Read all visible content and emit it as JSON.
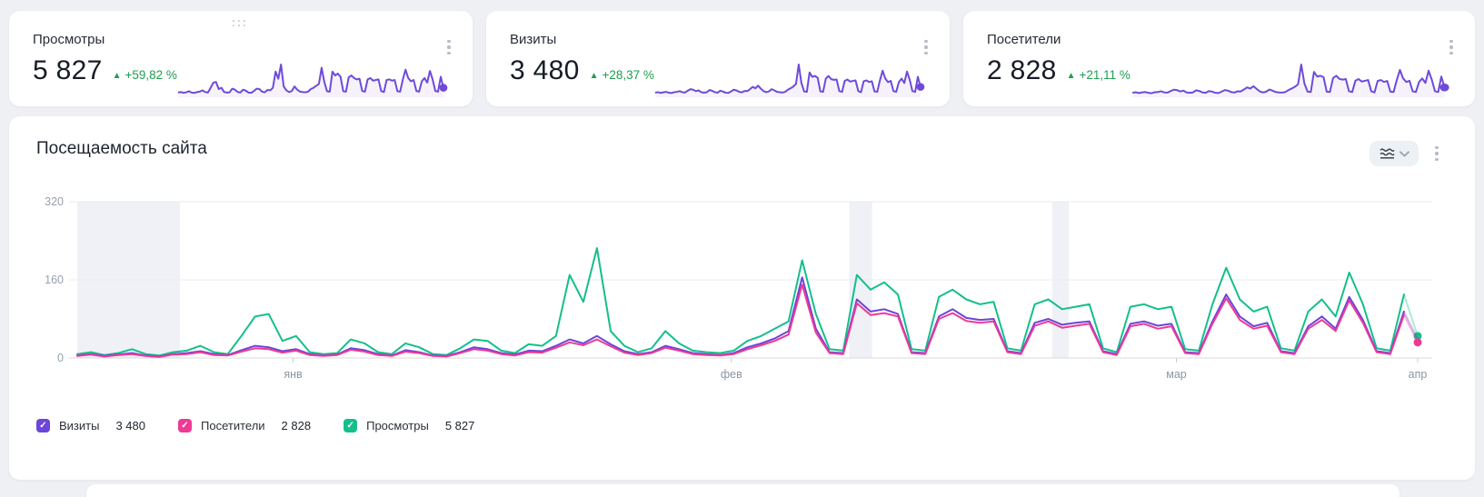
{
  "kpi_cards": [
    {
      "title": "Просмотры",
      "value": "5 827",
      "delta": "+59,82 %",
      "series_key": "views"
    },
    {
      "title": "Визиты",
      "value": "3 480",
      "delta": "+28,37 %",
      "series_key": "visits"
    },
    {
      "title": "Посетители",
      "value": "2 828",
      "delta": "+21,11 %",
      "series_key": "visitors"
    }
  ],
  "colors": {
    "delta_green": "#1f9e50",
    "spark_purple": "#6f4ad9",
    "grid": "#e9ebef",
    "axis": "#d8dbe1",
    "tick": "#c7ccd3",
    "axis_text": "#98a0ab",
    "band": "#eff1f6"
  },
  "main_card": {
    "title": "Посещаемость сайта",
    "chart_type_button": "line-chart-type",
    "menu_button": "more-options"
  },
  "chart_data": {
    "type": "line",
    "title": "Посещаемость сайта",
    "ylim": [
      0,
      320
    ],
    "yticks": [
      "0",
      "160",
      "320"
    ],
    "grid": "horizontal",
    "legend_position": "bottom",
    "xticks": [
      {
        "label": "янв",
        "f": 0.161
      },
      {
        "label": "фев",
        "f": 0.488
      },
      {
        "label": "мар",
        "f": 0.82
      },
      {
        "label": "апр",
        "f": 1.0
      }
    ],
    "bands": [
      {
        "f0": 0.0,
        "f1": 0.0766
      },
      {
        "f0": 0.576,
        "f1": 0.593
      },
      {
        "f0": 0.7274,
        "f1": 0.7397
      }
    ],
    "series": [
      {
        "key": "visits",
        "name": "Визиты",
        "total": "3 480",
        "color": "#6c45d9",
        "end_dot": false,
        "values": [
          5,
          8,
          4,
          7,
          10,
          5,
          3,
          8,
          10,
          14,
          8,
          6,
          16,
          25,
          22,
          14,
          18,
          8,
          5,
          7,
          20,
          16,
          8,
          5,
          16,
          12,
          5,
          4,
          12,
          22,
          18,
          10,
          7,
          15,
          14,
          25,
          38,
          30,
          45,
          28,
          14,
          8,
          12,
          25,
          18,
          10,
          8,
          6,
          10,
          22,
          30,
          40,
          55,
          165,
          60,
          12,
          10,
          120,
          95,
          100,
          90,
          12,
          10,
          85,
          100,
          82,
          78,
          80,
          14,
          10,
          72,
          80,
          68,
          72,
          75,
          14,
          8,
          70,
          75,
          66,
          70,
          12,
          10,
          75,
          130,
          85,
          65,
          72,
          14,
          10,
          65,
          85,
          60,
          125,
          78,
          14,
          10,
          95,
          38
        ]
      },
      {
        "key": "visitors",
        "name": "Посетители",
        "total": "2 828",
        "color": "#ee3a95",
        "end_dot": true,
        "values": [
          4,
          7,
          3,
          6,
          8,
          4,
          2,
          7,
          8,
          12,
          6,
          5,
          13,
          20,
          18,
          11,
          15,
          6,
          4,
          6,
          17,
          13,
          6,
          4,
          13,
          10,
          4,
          3,
          10,
          18,
          15,
          8,
          5,
          12,
          11,
          21,
          32,
          26,
          38,
          24,
          11,
          6,
          10,
          21,
          15,
          8,
          6,
          5,
          8,
          18,
          26,
          35,
          48,
          150,
          52,
          10,
          8,
          112,
          88,
          92,
          85,
          10,
          8,
          80,
          92,
          76,
          72,
          75,
          12,
          8,
          66,
          75,
          62,
          66,
          70,
          12,
          6,
          65,
          70,
          60,
          65,
          10,
          8,
          70,
          122,
          78,
          60,
          66,
          12,
          8,
          60,
          78,
          55,
          118,
          72,
          12,
          8,
          88,
          32
        ]
      },
      {
        "key": "views",
        "name": "Просмотры",
        "total": "5 827",
        "color": "#14bf8c",
        "end_dot": true,
        "values": [
          8,
          12,
          6,
          10,
          18,
          8,
          5,
          12,
          15,
          25,
          12,
          8,
          45,
          85,
          90,
          35,
          45,
          12,
          8,
          10,
          38,
          30,
          12,
          8,
          30,
          22,
          8,
          6,
          20,
          38,
          35,
          15,
          10,
          28,
          25,
          45,
          170,
          115,
          225,
          55,
          25,
          12,
          20,
          55,
          30,
          15,
          12,
          10,
          15,
          35,
          45,
          60,
          75,
          200,
          90,
          18,
          15,
          170,
          140,
          155,
          130,
          18,
          15,
          125,
          140,
          120,
          110,
          115,
          20,
          15,
          110,
          120,
          100,
          105,
          110,
          20,
          12,
          105,
          110,
          100,
          105,
          18,
          15,
          110,
          185,
          120,
          95,
          105,
          20,
          15,
          95,
          120,
          85,
          175,
          110,
          20,
          15,
          130,
          45
        ]
      }
    ]
  }
}
